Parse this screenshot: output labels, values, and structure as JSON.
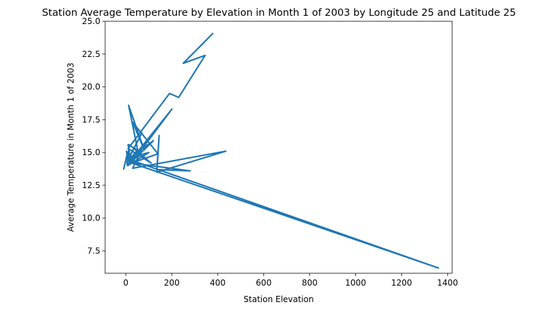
{
  "chart_data": {
    "type": "line",
    "title": "Station Average Temperature by Elevation in Month 1 of 2003 by Longitude 25 and Latitude 25",
    "xlabel": "Station Elevation",
    "ylabel": "Average Temperature in Month 1 of 2003",
    "xlim": [
      -90,
      1420
    ],
    "ylim": [
      5.8,
      25.0
    ],
    "xticks": [
      0,
      200,
      400,
      600,
      800,
      1000,
      1200,
      1400
    ],
    "yticks": [
      7.5,
      10.0,
      12.5,
      15.0,
      17.5,
      20.0,
      22.5,
      25.0
    ],
    "grid": false,
    "series_color": "#1f77b4",
    "series": [
      {
        "x": [
          -10,
          5,
          3,
          20,
          10,
          50,
          15,
          40,
          25,
          55,
          12,
          80,
          30,
          140,
          25,
          1360,
          10,
          120,
          8,
          100,
          15,
          70,
          5,
          35,
          200,
          25,
          280,
          135,
          145,
          135,
          435,
          30,
          60,
          5,
          15,
          110,
          10,
          190,
          230,
          345,
          250,
          380
        ],
        "y": [
          13.7,
          14.8,
          15.1,
          14.5,
          15.6,
          15.2,
          14.3,
          15.0,
          14.4,
          14.9,
          18.6,
          15.2,
          17.3,
          14.9,
          14.2,
          6.2,
          14.5,
          15.9,
          14.0,
          15.0,
          14.6,
          16.5,
          14.3,
          14.7,
          18.3,
          14.2,
          13.6,
          13.7,
          16.3,
          13.5,
          15.1,
          13.8,
          14.9,
          14.1,
          15.6,
          14.2,
          15.3,
          19.5,
          19.2,
          22.4,
          21.8,
          24.1
        ]
      }
    ]
  }
}
